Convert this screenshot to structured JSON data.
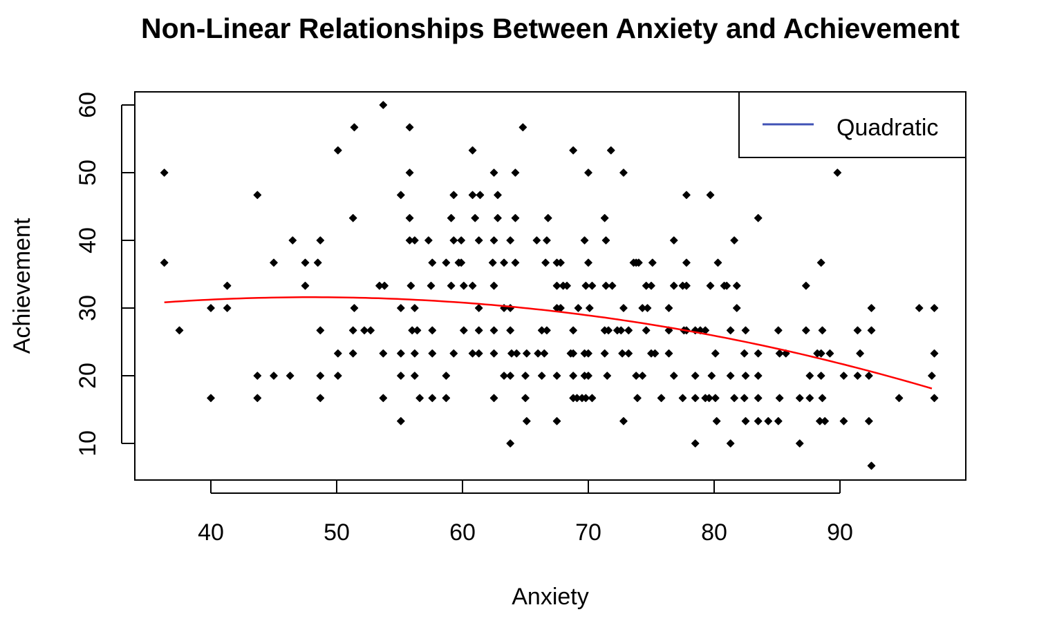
{
  "chart_data": {
    "type": "scatter",
    "title": "Non-Linear Relationships Between Anxiety and Achievement",
    "xlabel": "Anxiety",
    "ylabel": "Achievement",
    "xlim": [
      34,
      100
    ],
    "ylim": [
      5.2,
      62
    ],
    "xticks": [
      40,
      50,
      60,
      70,
      80,
      90
    ],
    "yticks": [
      10,
      20,
      30,
      40,
      50,
      60
    ],
    "legend": {
      "position": "top-right",
      "entries": [
        {
          "label": "Quadratic",
          "color": "#3f51b5"
        }
      ]
    },
    "point_color": "#000000",
    "fit_color": "#ff0000",
    "fit": {
      "type": "quadratic",
      "vertex_x": 48,
      "vertex_y": 31.6,
      "curvature": -0.00555,
      "x_range": [
        36.3,
        97.5
      ]
    },
    "points_by_y": [
      {
        "y": 60,
        "x": [
          53.7
        ]
      },
      {
        "y": 56.7,
        "x": [
          51.4,
          55.8,
          64.8
        ]
      },
      {
        "y": 53.3,
        "x": [
          50.1,
          60.8,
          68.8,
          71.8
        ]
      },
      {
        "y": 50,
        "x": [
          36.3,
          55.8,
          62.5,
          64.2,
          70.0,
          72.8,
          89.8
        ]
      },
      {
        "y": 46.7,
        "x": [
          43.7,
          55.1,
          59.3,
          60.8,
          61.4,
          62.8,
          77.8,
          79.7
        ]
      },
      {
        "y": 43.3,
        "x": [
          51.3,
          55.8,
          59.1,
          61.0,
          62.8,
          64.2,
          66.8,
          71.3,
          83.5
        ]
      },
      {
        "y": 40,
        "x": [
          46.5,
          48.7,
          55.8,
          56.2,
          57.3,
          59.3,
          59.9,
          61.3,
          62.5,
          63.8,
          65.9,
          66.7,
          69.7,
          71.4,
          76.8,
          81.6
        ]
      },
      {
        "y": 36.7,
        "x": [
          36.3,
          45.0,
          47.5,
          48.5,
          57.6,
          58.7,
          59.7,
          59.9,
          62.4,
          63.3,
          64.2,
          66.6,
          67.5,
          67.8,
          70.0,
          73.6,
          73.8,
          74.0,
          75.1,
          77.8,
          80.3,
          88.5
        ]
      },
      {
        "y": 33.3,
        "x": [
          41.3,
          47.5,
          53.4,
          53.8,
          55.9,
          57.5,
          59.1,
          60.1,
          60.8,
          62.5,
          67.5,
          68.0,
          68.3,
          69.8,
          70.3,
          71.4,
          71.9,
          74.6,
          75.0,
          76.8,
          77.5,
          77.8,
          79.7,
          80.8,
          81.0,
          81.8,
          87.3
        ]
      },
      {
        "y": 30,
        "x": [
          40.0,
          41.3,
          51.4,
          55.1,
          56.2,
          61.3,
          63.3,
          63.8,
          67.5,
          67.8,
          69.2,
          70.1,
          72.8,
          74.3,
          74.7,
          76.4,
          81.8,
          92.5,
          96.3,
          97.5
        ]
      },
      {
        "y": 26.7,
        "x": [
          37.5,
          48.7,
          51.3,
          52.2,
          52.7,
          56.0,
          56.4,
          57.6,
          60.1,
          61.3,
          62.5,
          63.8,
          66.3,
          66.7,
          68.8,
          71.3,
          71.6,
          72.3,
          72.6,
          73.2,
          74.6,
          76.4,
          77.6,
          77.8,
          78.5,
          78.9,
          79.3,
          81.3,
          82.5,
          85.1,
          87.3,
          88.6,
          91.4,
          92.5
        ]
      },
      {
        "y": 23.3,
        "x": [
          50.1,
          51.3,
          53.7,
          55.1,
          56.2,
          57.6,
          59.3,
          60.8,
          61.3,
          62.5,
          63.9,
          64.3,
          65.1,
          66.0,
          66.5,
          68.6,
          68.8,
          69.7,
          70.0,
          71.3,
          72.7,
          73.2,
          75.0,
          75.3,
          76.4,
          80.1,
          82.4,
          83.5,
          85.2,
          85.7,
          88.2,
          88.5,
          89.2,
          91.6,
          97.5
        ]
      },
      {
        "y": 20,
        "x": [
          43.7,
          45.0,
          46.3,
          48.7,
          50.1,
          55.1,
          56.2,
          58.7,
          63.3,
          63.8,
          65.0,
          66.3,
          67.5,
          68.8,
          69.7,
          70.0,
          71.5,
          73.8,
          74.3,
          76.8,
          78.5,
          79.8,
          81.3,
          82.5,
          83.5,
          87.6,
          88.5,
          90.3,
          91.4,
          92.3,
          97.3
        ]
      },
      {
        "y": 16.7,
        "x": [
          40.0,
          43.7,
          48.7,
          53.7,
          56.6,
          57.6,
          58.7,
          62.5,
          65.0,
          68.8,
          69.1,
          69.5,
          69.8,
          70.3,
          73.9,
          75.8,
          77.5,
          78.5,
          79.3,
          79.6,
          80.1,
          81.6,
          82.4,
          83.5,
          85.2,
          86.8,
          87.6,
          88.6,
          94.7,
          97.5
        ]
      },
      {
        "y": 13.3,
        "x": [
          55.1,
          65.1,
          67.5,
          72.8,
          80.2,
          82.5,
          83.5,
          84.3,
          85.1,
          88.4,
          88.8,
          90.3,
          92.3
        ]
      },
      {
        "y": 10,
        "x": [
          63.8,
          78.5,
          81.3,
          86.8
        ]
      },
      {
        "y": 6.7,
        "x": [
          92.5
        ]
      }
    ]
  }
}
